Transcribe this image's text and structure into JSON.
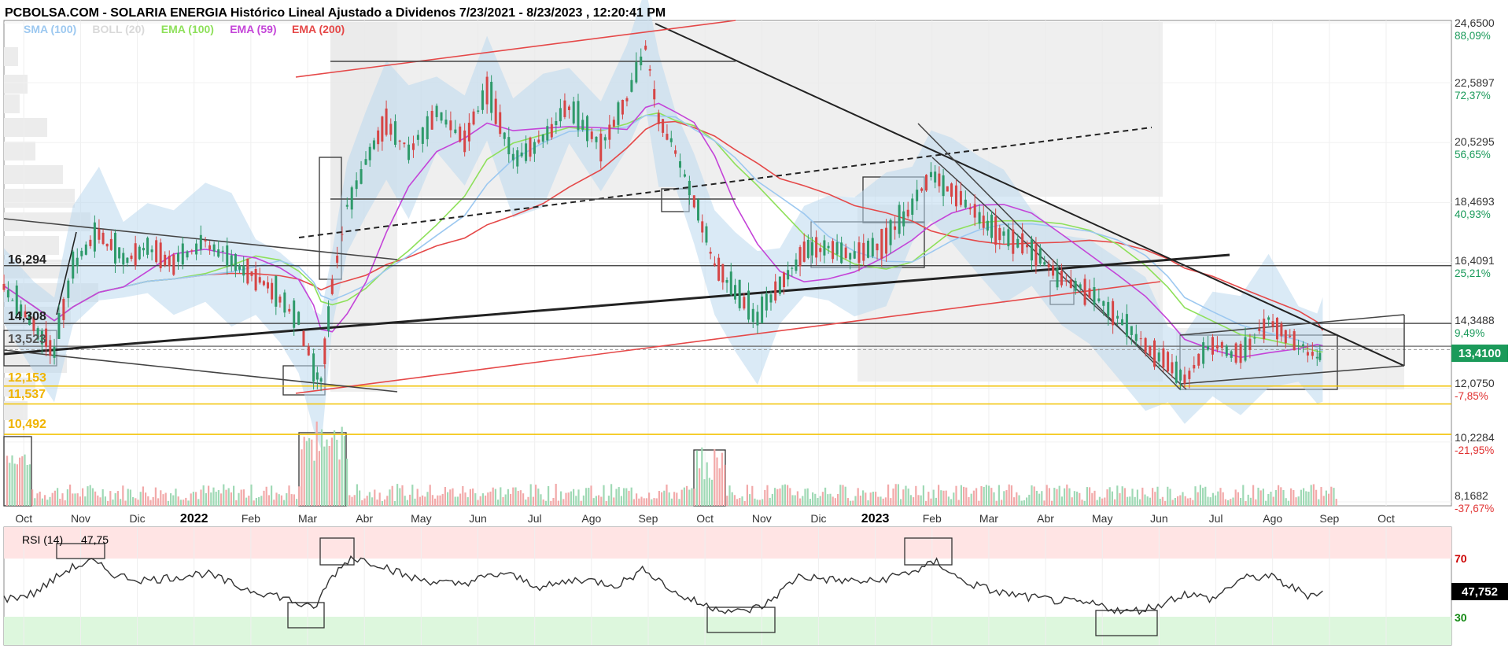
{
  "title": "PCBOLSA.COM - SOLARIA ENERGIA Histórico Lineal Ajustado a Dividenos 7/23/2021 - 8/23/2023 , 12:20:41 PM",
  "legend": [
    {
      "text": "SMA (100)",
      "color": "#9cc8f0"
    },
    {
      "text": "BOLL (20)",
      "color": "#d9d9d9"
    },
    {
      "text": "EMA (100)",
      "color": "#8ee05a"
    },
    {
      "text": "EMA (59)",
      "color": "#c444d8"
    },
    {
      "text": "EMA (200)",
      "color": "#e54848"
    }
  ],
  "price_axis": [
    {
      "price": "24,6500",
      "pct": "88,09%",
      "color": "#1a9a5a"
    },
    {
      "price": "22,5897",
      "pct": "72,37%",
      "color": "#1a9a5a"
    },
    {
      "price": "20,5295",
      "pct": "56,65%",
      "color": "#1a9a5a"
    },
    {
      "price": "18,4693",
      "pct": "40,93%",
      "color": "#1a9a5a"
    },
    {
      "price": "16,4091",
      "pct": "25,21%",
      "color": "#1a9a5a"
    },
    {
      "price": "14,3488",
      "pct": "9,49%",
      "color": "#1a9a5a"
    },
    {
      "price": "12,0750",
      "pct": "-7,85%",
      "color": "#e03030"
    },
    {
      "price": "10,2284",
      "pct": "-21,95%",
      "color": "#e03030"
    },
    {
      "price": "8,1682",
      "pct": "-37,67%",
      "color": "#e03030"
    }
  ],
  "current_price": "13,4100",
  "levels": [
    {
      "label": "16,294",
      "color": "#222222"
    },
    {
      "label": "14,308",
      "color": "#222222"
    },
    {
      "label": "13,523",
      "color": "#555555"
    },
    {
      "label": "12,153",
      "color": "#f0b400"
    },
    {
      "label": "11,537",
      "color": "#f0b400"
    },
    {
      "label": "10,492",
      "color": "#f0b400"
    }
  ],
  "x_axis": [
    {
      "text": "Oct",
      "year": false
    },
    {
      "text": "Nov",
      "year": false
    },
    {
      "text": "Dic",
      "year": false
    },
    {
      "text": "2022",
      "year": true
    },
    {
      "text": "Feb",
      "year": false
    },
    {
      "text": "Mar",
      "year": false
    },
    {
      "text": "Abr",
      "year": false
    },
    {
      "text": "May",
      "year": false
    },
    {
      "text": "Jun",
      "year": false
    },
    {
      "text": "Jul",
      "year": false
    },
    {
      "text": "Ago",
      "year": false
    },
    {
      "text": "Sep",
      "year": false
    },
    {
      "text": "Oct",
      "year": false
    },
    {
      "text": "Nov",
      "year": false
    },
    {
      "text": "Dic",
      "year": false
    },
    {
      "text": "2023",
      "year": true
    },
    {
      "text": "Feb",
      "year": false
    },
    {
      "text": "Mar",
      "year": false
    },
    {
      "text": "Abr",
      "year": false
    },
    {
      "text": "May",
      "year": false
    },
    {
      "text": "Jun",
      "year": false
    },
    {
      "text": "Jul",
      "year": false
    },
    {
      "text": "Ago",
      "year": false
    },
    {
      "text": "Sep",
      "year": false
    },
    {
      "text": "Oct",
      "year": false
    }
  ],
  "rsi": {
    "label": "RSI (14)",
    "value": "47,75",
    "axis_value": "47,752",
    "upper": "70",
    "lower": "30"
  },
  "chart_data": {
    "type": "line",
    "title": "PCBOLSA.COM - SOLARIA ENERGIA Histórico Lineal Ajustado a Dividenos 7/23/2021 - 8/23/2023 , 12:20:41 PM",
    "x_range": [
      "2021-09-15",
      "2023-10-31"
    ],
    "ylim": [
      8.1682,
      24.65
    ],
    "grid": true,
    "close_series": [
      [
        "2021-09-15",
        15.6
      ],
      [
        "2021-10-01",
        14.2
      ],
      [
        "2021-10-12",
        13.4
      ],
      [
        "2021-10-22",
        16.3
      ],
      [
        "2021-11-05",
        17.4
      ],
      [
        "2021-11-18",
        16.5
      ],
      [
        "2021-12-01",
        16.9
      ],
      [
        "2021-12-15",
        16.4
      ],
      [
        "2022-01-01",
        17.1
      ],
      [
        "2022-01-15",
        16.5
      ],
      [
        "2022-01-28",
        15.9
      ],
      [
        "2022-02-10",
        15.2
      ],
      [
        "2022-02-20",
        14.4
      ],
      [
        "2022-02-28",
        12.7
      ],
      [
        "2022-03-04",
        12.3
      ],
      [
        "2022-03-10",
        15.5
      ],
      [
        "2022-03-18",
        18.3
      ],
      [
        "2022-03-28",
        19.8
      ],
      [
        "2022-04-08",
        21.3
      ],
      [
        "2022-04-20",
        20.2
      ],
      [
        "2022-05-05",
        21.5
      ],
      [
        "2022-05-20",
        20.6
      ],
      [
        "2022-06-01",
        22.4
      ],
      [
        "2022-06-15",
        20.0
      ],
      [
        "2022-07-01",
        20.6
      ],
      [
        "2022-07-15",
        21.8
      ],
      [
        "2022-08-01",
        20.4
      ],
      [
        "2022-08-15",
        22.1
      ],
      [
        "2022-08-25",
        23.8
      ],
      [
        "2022-09-01",
        21.3
      ],
      [
        "2022-09-10",
        20.3
      ],
      [
        "2022-09-20",
        18.6
      ],
      [
        "2022-10-01",
        16.4
      ],
      [
        "2022-10-12",
        15.4
      ],
      [
        "2022-10-24",
        14.5
      ],
      [
        "2022-11-05",
        15.6
      ],
      [
        "2022-11-18",
        16.8
      ],
      [
        "2022-12-01",
        16.9
      ],
      [
        "2022-12-15",
        16.6
      ],
      [
        "2023-01-01",
        17.2
      ],
      [
        "2023-01-15",
        18.4
      ],
      [
        "2023-01-25",
        19.4
      ],
      [
        "2023-02-05",
        18.9
      ],
      [
        "2023-02-20",
        18.0
      ],
      [
        "2023-03-05",
        17.3
      ],
      [
        "2023-03-20",
        16.9
      ],
      [
        "2023-04-05",
        15.8
      ],
      [
        "2023-04-20",
        15.4
      ],
      [
        "2023-05-05",
        14.5
      ],
      [
        "2023-05-20",
        13.6
      ],
      [
        "2023-06-01",
        12.9
      ],
      [
        "2023-06-10",
        12.4
      ],
      [
        "2023-06-25",
        13.6
      ],
      [
        "2023-07-10",
        13.2
      ],
      [
        "2023-07-25",
        14.4
      ],
      [
        "2023-08-10",
        13.6
      ],
      [
        "2023-08-20",
        13.1
      ],
      [
        "2023-08-23",
        13.41
      ]
    ],
    "rsi_series": [
      [
        "2021-09-15",
        42
      ],
      [
        "2021-10-01",
        46
      ],
      [
        "2021-10-20",
        63
      ],
      [
        "2021-11-01",
        68
      ],
      [
        "2021-11-15",
        58
      ],
      [
        "2021-12-01",
        55
      ],
      [
        "2022-01-01",
        60
      ],
      [
        "2022-01-20",
        50
      ],
      [
        "2022-02-10",
        44
      ],
      [
        "2022-02-28",
        35
      ],
      [
        "2022-03-10",
        58
      ],
      [
        "2022-03-20",
        71
      ],
      [
        "2022-04-05",
        66
      ],
      [
        "2022-04-20",
        57
      ],
      [
        "2022-05-15",
        52
      ],
      [
        "2022-06-10",
        60
      ],
      [
        "2022-07-01",
        50
      ],
      [
        "2022-07-20",
        56
      ],
      [
        "2022-08-10",
        52
      ],
      [
        "2022-08-25",
        63
      ],
      [
        "2022-09-10",
        46
      ],
      [
        "2022-09-25",
        38
      ],
      [
        "2022-10-15",
        33
      ],
      [
        "2022-10-28",
        38
      ],
      [
        "2022-11-15",
        58
      ],
      [
        "2022-12-05",
        55
      ],
      [
        "2022-12-25",
        54
      ],
      [
        "2023-01-20",
        63
      ],
      [
        "2023-01-28",
        68
      ],
      [
        "2023-02-10",
        55
      ],
      [
        "2023-03-01",
        47
      ],
      [
        "2023-03-20",
        43
      ],
      [
        "2023-04-10",
        40
      ],
      [
        "2023-04-25",
        38
      ],
      [
        "2023-05-10",
        33
      ],
      [
        "2023-05-25",
        37
      ],
      [
        "2023-06-10",
        46
      ],
      [
        "2023-06-25",
        42
      ],
      [
        "2023-07-10",
        56
      ],
      [
        "2023-07-25",
        58
      ],
      [
        "2023-08-05",
        51
      ],
      [
        "2023-08-15",
        45
      ],
      [
        "2023-08-23",
        47.75
      ]
    ],
    "horizontal_levels": [
      16.294,
      14.308,
      13.523,
      12.153,
      11.537,
      10.492
    ]
  }
}
